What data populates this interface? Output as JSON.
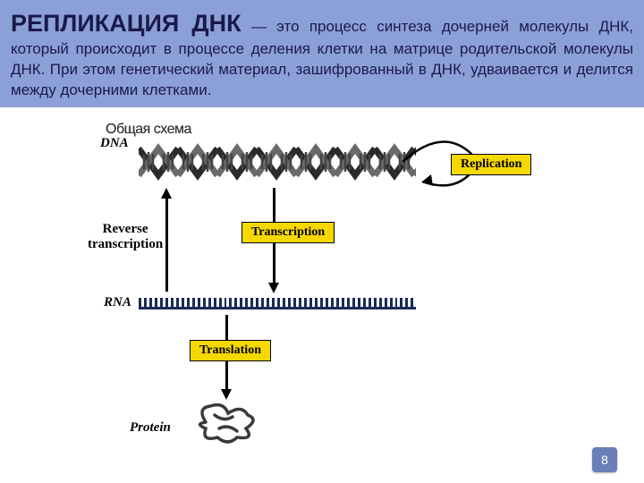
{
  "colors": {
    "header_bg": "#8ca0d8",
    "body_bg": "#ffffff",
    "title_color": "#1a1a4a",
    "label_bg": "#f5d800",
    "slide_num_bg": "#6a7fb8",
    "helix_dark": "#2a2a2a",
    "helix_light": "#6a6a6a",
    "rna_color": "#1a2a5a",
    "protein_color": "#3a3a3a"
  },
  "title": {
    "bold": "РЕПЛИКАЦИЯ ДНК",
    "rest": " — это процесс синтеза дочерней молекулы ДНК, который происходит в процессе деления клетки на матрице родительской молекулы ДНК. При этом генетический материал, зашифрованный в ДНК, удваивается и делится между дочерними клетками."
  },
  "caption": "Общая схема",
  "labels": {
    "replication": "Replication",
    "transcription": "Transcription",
    "reverse": "Reverse",
    "reverse2": "transcription",
    "translation": "Translation",
    "dna": "DNA",
    "rna": "RNA",
    "protein": "Protein"
  },
  "slide_number": "8"
}
